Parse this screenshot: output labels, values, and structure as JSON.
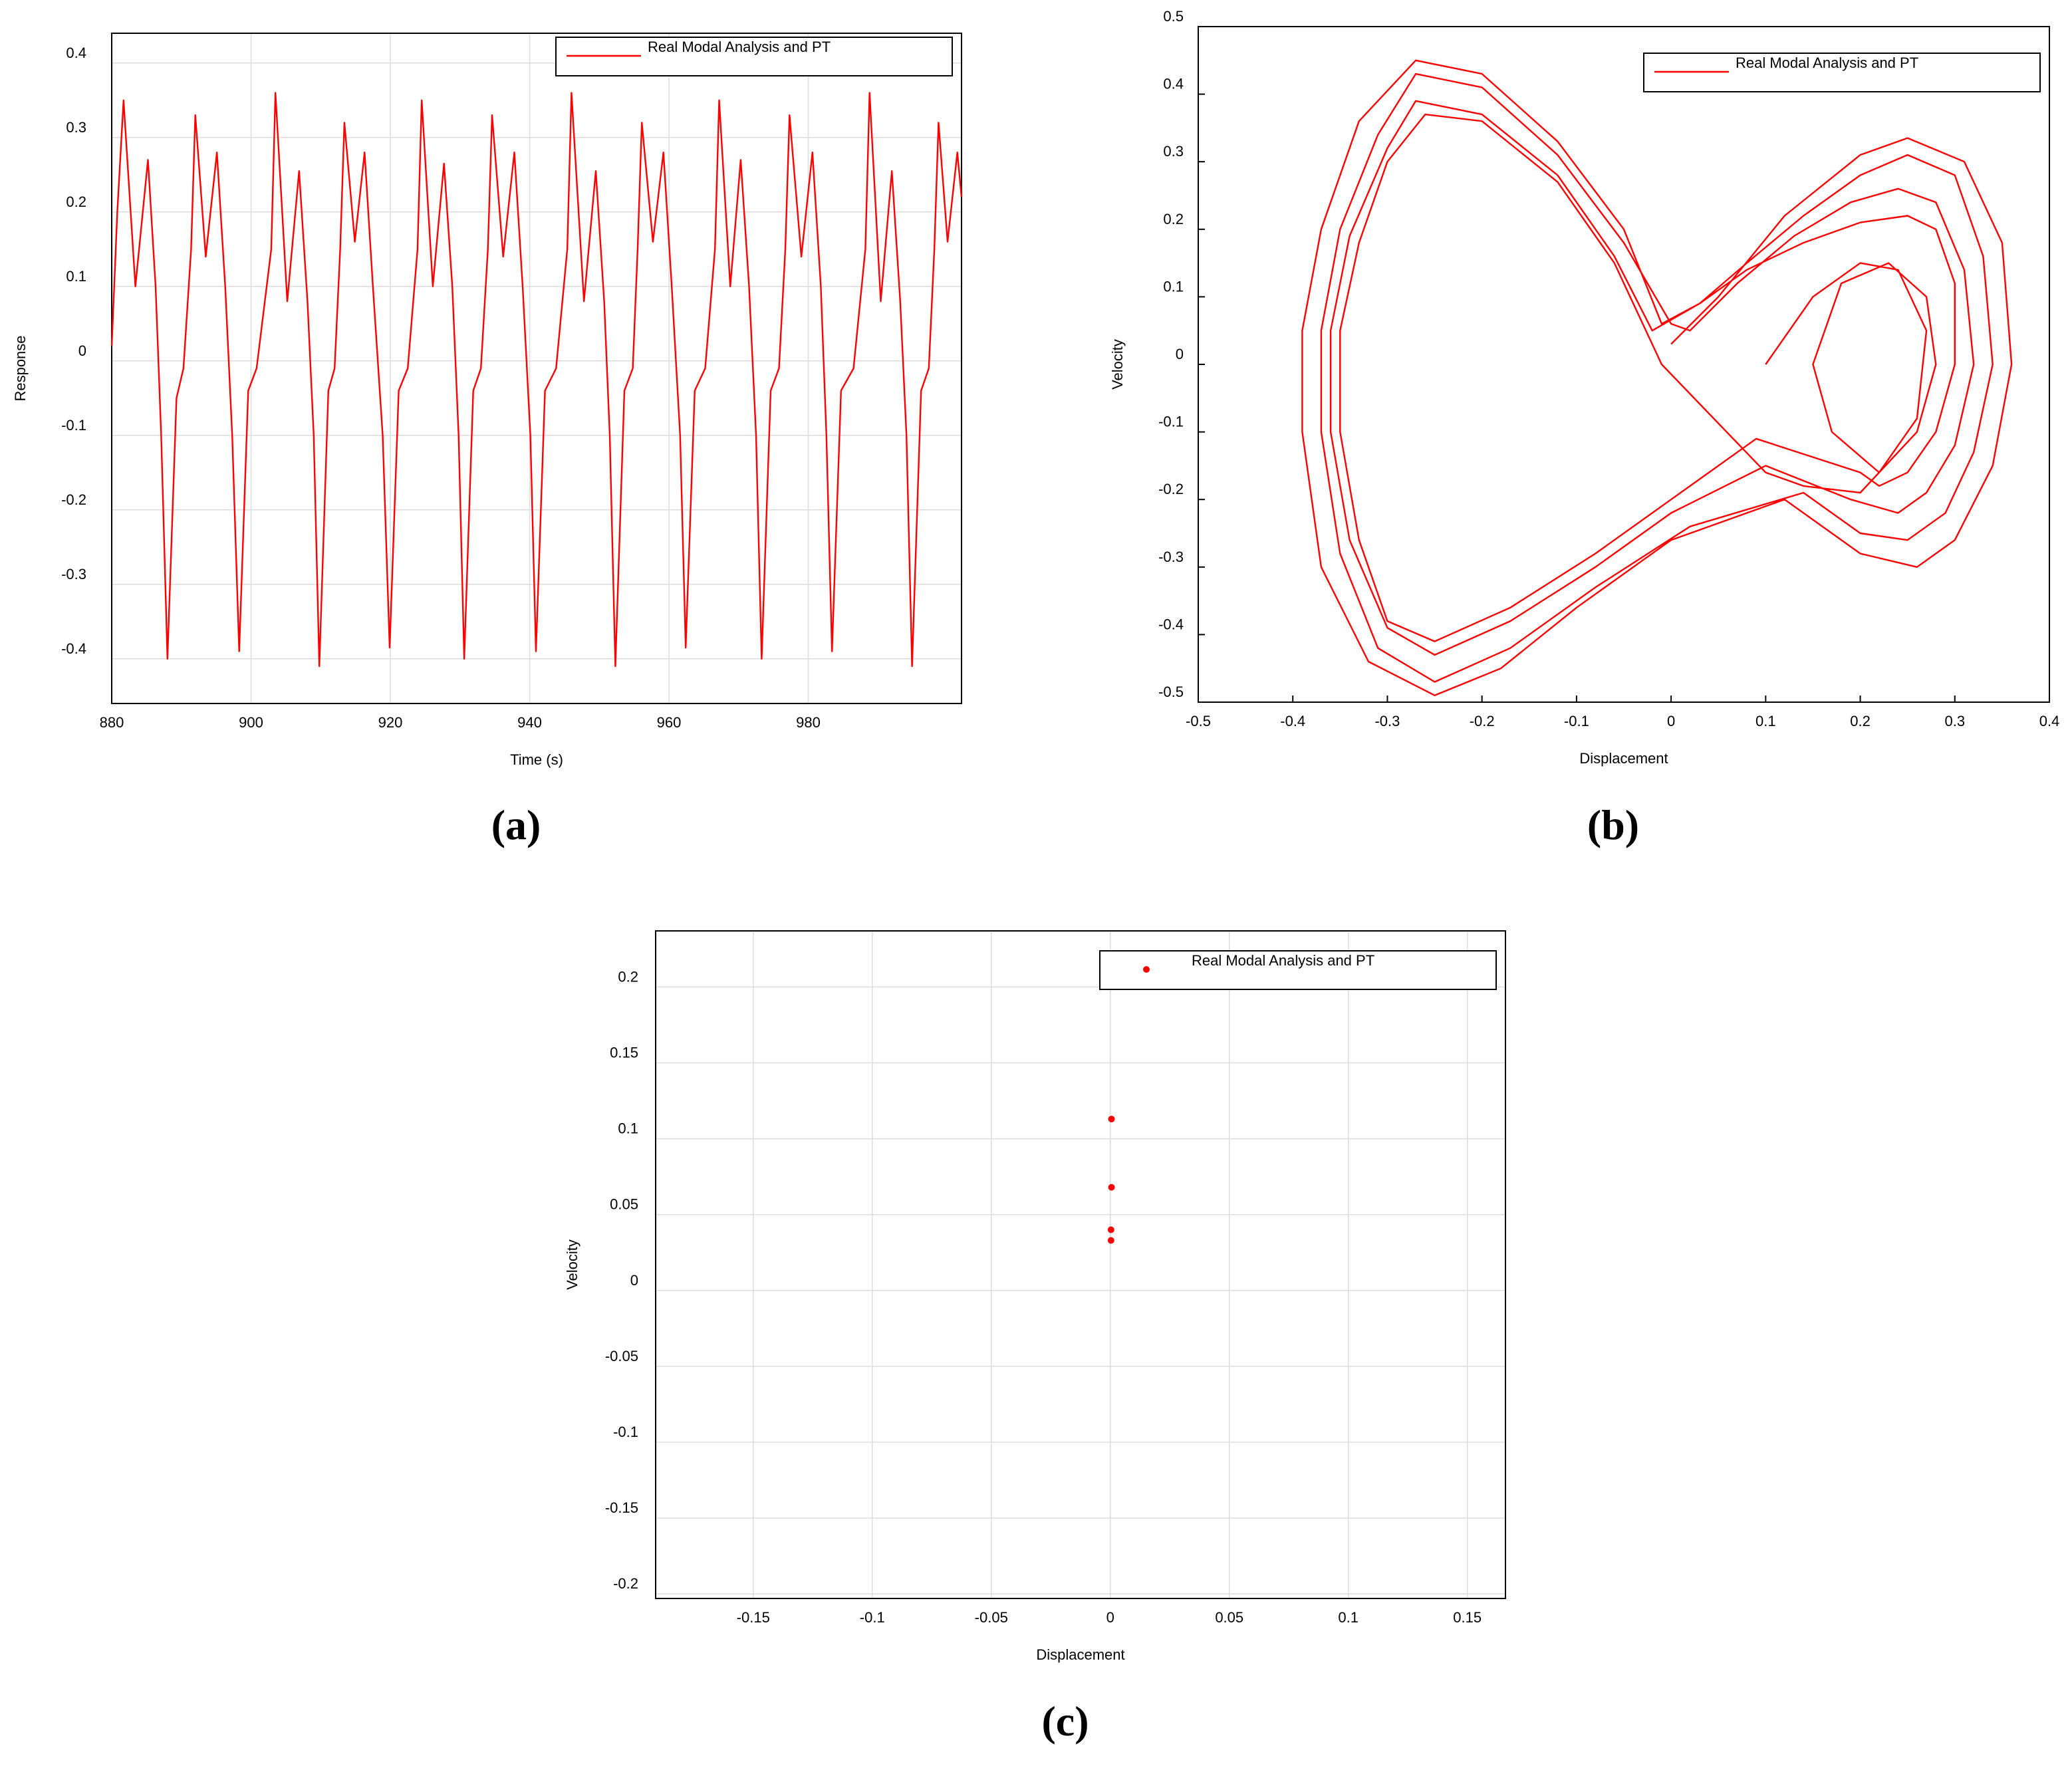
{
  "chart_data": [
    {
      "type": "line",
      "label": "(a)",
      "x_label": "Time (s)",
      "y_label": "Response",
      "xlim": [
        880,
        1002
      ],
      "ylim": [
        -0.46,
        0.44
      ],
      "xticks": [
        880,
        900,
        920,
        940,
        960,
        980
      ],
      "yticks": [
        -0.4,
        -0.3,
        -0.2,
        -0.1,
        0,
        0.1,
        0.2,
        0.3,
        0.4
      ],
      "grid": true,
      "legend": "top-right",
      "x": [
        880,
        880.8,
        881.7,
        883.4,
        885.2,
        886.3,
        887.1,
        888.0,
        889.3,
        890.3,
        891.4,
        892.0,
        893.5,
        895.1,
        896.3,
        897.3,
        898.3,
        899.6,
        900.8,
        902.9,
        903.5,
        905.2,
        906.9,
        908.1,
        909.0,
        909.8,
        911.1,
        912.0,
        912.8,
        913.4,
        914.9,
        916.3,
        917.5,
        918.9,
        919.9,
        921.2,
        922.5,
        923.9,
        924.5,
        926.1,
        927.7,
        928.9,
        929.8,
        930.6,
        931.9,
        933.0,
        934.0,
        934.6,
        936.2,
        937.8,
        939.0,
        940.1,
        940.9,
        942.2,
        943.8,
        945.4,
        946.0,
        947.8,
        949.5,
        950.7,
        951.5,
        952.3,
        953.6,
        954.8,
        955.5,
        956.1,
        957.7,
        959.2,
        960.4,
        961.6,
        962.4,
        963.7,
        965.2,
        966.6,
        967.2,
        968.8,
        970.3,
        971.5,
        972.5,
        973.3,
        974.6,
        975.8,
        976.7,
        977.3,
        979.0,
        980.6,
        981.8,
        982.6,
        983.4,
        984.7,
        986.5,
        988.2,
        988.8,
        990.4,
        992.0,
        993.2,
        994.1,
        994.9,
        996.2,
        997.3,
        998.1,
        998.7,
        1000.0,
        1001.4,
        1002
      ],
      "series": [
        {
          "name": "Real Modal Analysis and PT",
          "color": "#ff0000",
          "values": [
            0.02,
            0.2,
            0.35,
            0.1,
            0.27,
            0.1,
            -0.1,
            -0.4,
            -0.05,
            -0.01,
            0.15,
            0.33,
            0.14,
            0.28,
            0.1,
            -0.1,
            -0.39,
            -0.04,
            -0.01,
            0.15,
            0.36,
            0.08,
            0.255,
            0.08,
            -0.1,
            -0.41,
            -0.04,
            -0.01,
            0.15,
            0.32,
            0.16,
            0.28,
            0.1,
            -0.1,
            -0.385,
            -0.04,
            -0.01,
            0.15,
            0.35,
            0.1,
            0.265,
            0.1,
            -0.1,
            -0.4,
            -0.04,
            -0.01,
            0.15,
            0.33,
            0.14,
            0.28,
            0.1,
            -0.1,
            -0.39,
            -0.04,
            -0.01,
            0.15,
            0.36,
            0.08,
            0.255,
            0.08,
            -0.1,
            -0.41,
            -0.04,
            -0.01,
            0.15,
            0.32,
            0.16,
            0.28,
            0.1,
            -0.1,
            -0.385,
            -0.04,
            -0.01,
            0.15,
            0.35,
            0.1,
            0.27,
            0.1,
            -0.1,
            -0.4,
            -0.04,
            -0.01,
            0.15,
            0.33,
            0.14,
            0.28,
            0.1,
            -0.1,
            -0.39,
            -0.04,
            -0.01,
            0.15,
            0.36,
            0.08,
            0.255,
            0.08,
            -0.1,
            -0.41,
            -0.04,
            -0.01,
            0.15,
            0.32,
            0.16,
            0.28,
            0.22
          ]
        }
      ]
    },
    {
      "type": "line",
      "label": "(b)",
      "x_label": "Displacement",
      "y_label": "Velocity",
      "xlim": [
        -0.5,
        0.4
      ],
      "ylim": [
        -0.5,
        0.5
      ],
      "xticks": [
        -0.5,
        -0.4,
        -0.3,
        -0.2,
        -0.1,
        0,
        0.1,
        0.2,
        0.3,
        0.4
      ],
      "yticks": [
        -0.5,
        -0.4,
        -0.3,
        -0.2,
        -0.1,
        0,
        0.1,
        0.2,
        0.3,
        0.4,
        0.5
      ],
      "grid": false,
      "legend": "top-right",
      "x": [
        0,
        0.05,
        0.12,
        0.2,
        0.25,
        0.31,
        0.35,
        0.36,
        0.34,
        0.3,
        0.26,
        0.2,
        0.12,
        0,
        -0.1,
        -0.18,
        -0.25,
        -0.32,
        -0.37,
        -0.39,
        -0.39,
        -0.37,
        -0.33,
        -0.27,
        -0.2,
        -0.12,
        -0.05,
        -0.01,
        0.03,
        0.08,
        0.14,
        0.2,
        0.25,
        0.3,
        0.33,
        0.34,
        0.32,
        0.29,
        0.25,
        0.2,
        0.14,
        0.02,
        -0.08,
        -0.17,
        -0.25,
        -0.31,
        -0.35,
        -0.37,
        -0.37,
        -0.35,
        -0.31,
        -0.27,
        -0.2,
        -0.12,
        -0.05,
        0.0,
        0.02,
        0.07,
        0.13,
        0.19,
        0.24,
        0.28,
        0.31,
        0.32,
        0.3,
        0.27,
        0.24,
        0.19,
        0.1,
        0.0,
        -0.08,
        -0.17,
        -0.25,
        -0.3,
        -0.34,
        -0.36,
        -0.36,
        -0.34,
        -0.3,
        -0.27,
        -0.2,
        -0.12,
        -0.06,
        -0.02,
        0.03,
        0.08,
        0.14,
        0.2,
        0.25,
        0.28,
        0.3,
        0.3,
        0.28,
        0.25,
        0.22,
        0.2,
        0.09,
        0.0,
        -0.08,
        -0.17,
        -0.25,
        -0.3,
        -0.33,
        -0.35,
        -0.35,
        -0.33,
        -0.3,
        -0.26,
        -0.2,
        -0.12,
        -0.06,
        -0.01,
        0.1,
        0.14,
        0.2,
        0.26,
        0.28,
        0.27,
        0.23,
        0.18,
        0.15,
        0.17,
        0.22,
        0.26,
        0.27,
        0.24,
        0.2,
        0.15,
        0.1
      ],
      "series": [
        {
          "name": "Real Modal Analysis and PT",
          "color": "#ff0000",
          "values": [
            0.03,
            0.1,
            0.22,
            0.31,
            0.335,
            0.3,
            0.18,
            0,
            -0.15,
            -0.26,
            -0.3,
            -0.28,
            -0.2,
            -0.26,
            -0.36,
            -0.45,
            -0.49,
            -0.44,
            -0.3,
            -0.1,
            0.05,
            0.2,
            0.36,
            0.45,
            0.43,
            0.33,
            0.2,
            0.06,
            0.09,
            0.15,
            0.22,
            0.28,
            0.31,
            0.28,
            0.16,
            0,
            -0.13,
            -0.22,
            -0.26,
            -0.25,
            -0.19,
            -0.24,
            -0.33,
            -0.42,
            -0.47,
            -0.42,
            -0.28,
            -0.1,
            0.05,
            0.2,
            0.34,
            0.43,
            0.41,
            0.31,
            0.18,
            0.06,
            0.05,
            0.12,
            0.19,
            0.24,
            0.26,
            0.24,
            0.14,
            0,
            -0.12,
            -0.19,
            -0.22,
            -0.2,
            -0.15,
            -0.22,
            -0.3,
            -0.38,
            -0.43,
            -0.39,
            -0.26,
            -0.1,
            0.05,
            0.19,
            0.32,
            0.39,
            0.37,
            0.28,
            0.16,
            0.05,
            0.09,
            0.14,
            0.18,
            0.21,
            0.22,
            0.2,
            0.12,
            0,
            -0.1,
            -0.16,
            -0.18,
            -0.16,
            -0.11,
            -0.2,
            -0.28,
            -0.36,
            -0.41,
            -0.38,
            -0.26,
            -0.1,
            0.05,
            0.18,
            0.3,
            0.37,
            0.36,
            0.27,
            0.15,
            0.0,
            -0.16,
            -0.18,
            -0.19,
            -0.1,
            0.0,
            0.1,
            0.15,
            0.12,
            0.0,
            -0.1,
            -0.16,
            -0.08,
            0.05,
            0.14,
            0.15,
            0.1,
            0.0
          ]
        }
      ]
    },
    {
      "type": "scatter",
      "label": "(c)",
      "x_label": "Displacement",
      "y_label": "Velocity",
      "xlim": [
        -0.191,
        0.166
      ],
      "ylim": [
        -0.203,
        0.237
      ],
      "xticks": [
        -0.15,
        -0.1,
        -0.05,
        0,
        0.05,
        0.1,
        0.15
      ],
      "yticks": [
        -0.2,
        -0.15,
        -0.1,
        -0.05,
        0,
        0.05,
        0.1,
        0.15,
        0.2
      ],
      "grid": true,
      "legend": "top-right",
      "x": [
        0.0005,
        0.0005,
        0.0003,
        0.0003
      ],
      "series": [
        {
          "name": "Real Modal Analysis and PT",
          "color": "#ff0000",
          "values": [
            0.113,
            0.068,
            0.04,
            0.033
          ]
        }
      ]
    }
  ]
}
